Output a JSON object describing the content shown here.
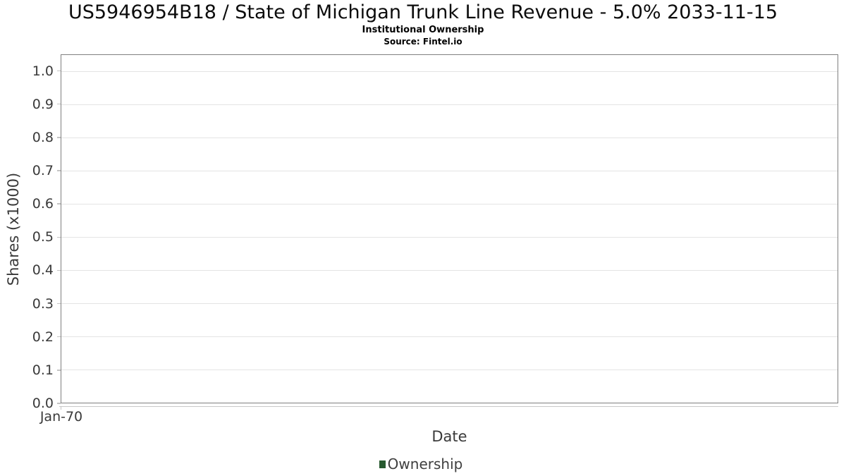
{
  "header": {
    "title": "US5946954B18 / State of Michigan Trunk Line Revenue - 5.0% 2033-11-15",
    "subtitle": "Institutional Ownership",
    "source": "Source: Fintel.io"
  },
  "chart_data": {
    "type": "line",
    "title": "US5946954B18 / State of Michigan Trunk Line Revenue - 5.0% 2033-11-15",
    "subtitle": "Institutional Ownership",
    "source": "Source: Fintel.io",
    "xlabel": "Date",
    "ylabel": "Shares (x1000)",
    "xticklabels": [
      "Jan-70"
    ],
    "yticks": [
      0.0,
      0.1,
      0.2,
      0.3,
      0.4,
      0.5,
      0.6,
      0.7,
      0.8,
      0.9,
      1.0
    ],
    "ylim": [
      0,
      1.05
    ],
    "grid": true,
    "legend": {
      "position": "bottom",
      "entries": [
        {
          "label": "Ownership",
          "color": "#27592f"
        }
      ]
    },
    "series": [
      {
        "name": "Ownership",
        "x": [],
        "values": []
      }
    ]
  }
}
